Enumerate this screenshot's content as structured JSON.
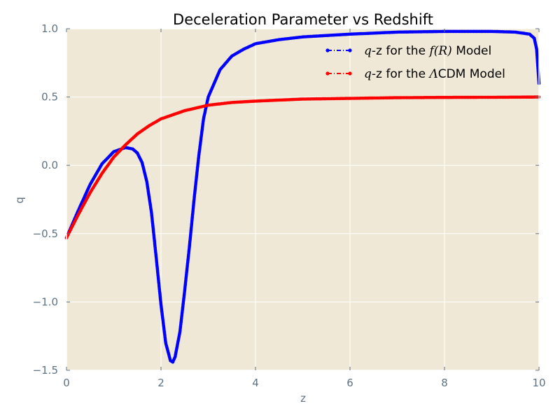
{
  "chart_data": {
    "type": "line",
    "title": "Deceleration Parameter vs Redshift",
    "xlabel": "z",
    "ylabel": "q",
    "xlim": [
      0,
      10
    ],
    "ylim": [
      -1.5,
      1.0
    ],
    "xticks": [
      0,
      2,
      4,
      6,
      8,
      10
    ],
    "xtick_labels": [
      "0",
      "2",
      "4",
      "6",
      "8",
      "10"
    ],
    "yticks": [
      1.0,
      0.5,
      0.0,
      -0.5,
      -1.0,
      -1.5
    ],
    "ytick_labels": [
      "1.0",
      "0.5",
      "0.0",
      "−0.5",
      "−1.0",
      "−1.5"
    ],
    "grid": true,
    "background": "#efe8d6",
    "legend_position": "top-right",
    "series": [
      {
        "name": "q-z for the f(R) Model",
        "legend_prefix": "q",
        "legend_mid": "-z for the ",
        "legend_math": "f(R)",
        "legend_suffix": " Model",
        "color": "#0000ff",
        "marker": "dots",
        "x": [
          0,
          0.25,
          0.5,
          0.75,
          1.0,
          1.25,
          1.4,
          1.5,
          1.6,
          1.7,
          1.8,
          1.9,
          2.0,
          2.1,
          2.2,
          2.25,
          2.3,
          2.4,
          2.5,
          2.6,
          2.7,
          2.8,
          2.9,
          3.0,
          3.25,
          3.5,
          3.75,
          4.0,
          4.5,
          5.0,
          6.0,
          7.0,
          8.0,
          9.0,
          9.5,
          9.8,
          9.9,
          9.95,
          10.0
        ],
        "y": [
          -0.53,
          -0.33,
          -0.14,
          0.01,
          0.1,
          0.13,
          0.12,
          0.09,
          0.02,
          -0.12,
          -0.35,
          -0.68,
          -1.02,
          -1.3,
          -1.43,
          -1.44,
          -1.4,
          -1.22,
          -0.92,
          -0.6,
          -0.25,
          0.07,
          0.34,
          0.5,
          0.7,
          0.8,
          0.85,
          0.89,
          0.92,
          0.94,
          0.96,
          0.975,
          0.98,
          0.98,
          0.975,
          0.96,
          0.93,
          0.85,
          0.6
        ]
      },
      {
        "name": "q-z for the ΛCDM Model",
        "legend_prefix": "q",
        "legend_mid": "-z for the ",
        "legend_math": "Λ",
        "legend_suffix": "CDM Model",
        "color": "#ff0000",
        "marker": "dots",
        "x": [
          0,
          0.25,
          0.5,
          0.75,
          1.0,
          1.25,
          1.5,
          1.75,
          2.0,
          2.5,
          3.0,
          3.5,
          4.0,
          5.0,
          6.0,
          7.0,
          8.0,
          9.0,
          10.0
        ],
        "y": [
          -0.53,
          -0.36,
          -0.2,
          -0.06,
          0.06,
          0.15,
          0.23,
          0.29,
          0.34,
          0.4,
          0.44,
          0.46,
          0.47,
          0.485,
          0.49,
          0.495,
          0.497,
          0.498,
          0.5
        ]
      }
    ]
  }
}
